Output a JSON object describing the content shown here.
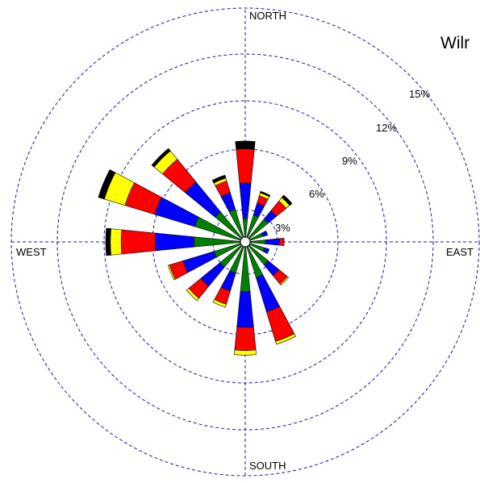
{
  "chart_data": {
    "type": "windrose",
    "title": "Wilr",
    "directions": [
      "NORTH",
      "EAST",
      "SOUTH",
      "WEST"
    ],
    "rings": [
      3,
      6,
      9,
      12,
      15
    ],
    "ring_labels": [
      "3%",
      "6%",
      "9%",
      "12%",
      "15%"
    ],
    "speed_colors": [
      "#008000",
      "#0000ff",
      "#ff0000",
      "#ffff00",
      "#000000"
    ],
    "sectors": [
      {
        "angle": 0,
        "values": [
          1.2,
          2.3,
          2.2,
          0.0,
          0.5
        ]
      },
      {
        "angle": 22.5,
        "values": [
          1.5,
          0.8,
          0.5,
          0.2,
          0.1
        ]
      },
      {
        "angle": 45,
        "values": [
          1.6,
          0.7,
          0.8,
          0.3,
          0.2
        ]
      },
      {
        "angle": 67.5,
        "values": [
          0.9,
          0.3,
          0.0,
          0.0,
          0.0
        ]
      },
      {
        "angle": 90,
        "values": [
          1.0,
          0.9,
          0.3,
          0.0,
          0.0
        ]
      },
      {
        "angle": 112.5,
        "values": [
          1.0,
          0.3,
          0.0,
          0.0,
          0.0
        ]
      },
      {
        "angle": 135,
        "values": [
          1.6,
          0.9,
          0.7,
          0.1,
          0.0
        ]
      },
      {
        "angle": 157.5,
        "values": [
          2.1,
          2.3,
          2.0,
          0.2,
          0.0
        ]
      },
      {
        "angle": 180,
        "values": [
          2.9,
          2.3,
          1.5,
          0.3,
          0.0
        ]
      },
      {
        "angle": 202.5,
        "values": [
          1.8,
          1.2,
          0.9,
          0.2,
          0.0
        ]
      },
      {
        "angle": 225,
        "values": [
          1.8,
          1.6,
          1.0,
          0.2,
          0.0
        ]
      },
      {
        "angle": 247.5,
        "values": [
          1.8,
          2.1,
          0.9,
          0.1,
          0.0
        ]
      },
      {
        "angle": 270,
        "values": [
          3.0,
          2.5,
          2.2,
          0.7,
          0.3
        ]
      },
      {
        "angle": 292.5,
        "values": [
          3.1,
          2.7,
          2.0,
          1.4,
          0.4
        ]
      },
      {
        "angle": 315,
        "values": [
          2.2,
          2.5,
          1.9,
          0.7,
          0.2
        ]
      },
      {
        "angle": 337.5,
        "values": [
          1.9,
          1.1,
          0.8,
          0.2,
          0.2
        ]
      }
    ]
  }
}
